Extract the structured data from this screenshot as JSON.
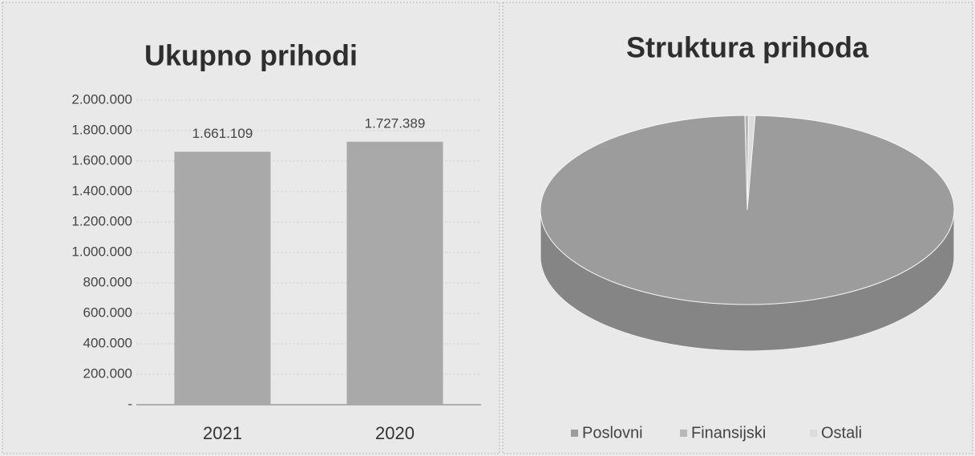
{
  "chart_data": [
    {
      "type": "bar",
      "title": "Ukupno prihodi",
      "categories": [
        "2021",
        "2020"
      ],
      "values": [
        1661109,
        1727389
      ],
      "value_labels": [
        "1.661.109",
        "1.727.389"
      ],
      "color": "#a9a9a9",
      "ylim": [
        0,
        2000000
      ],
      "yticks": [
        {
          "value": 0,
          "label": "-"
        },
        {
          "value": 200000,
          "label": "200.000"
        },
        {
          "value": 400000,
          "label": "400.000"
        },
        {
          "value": 600000,
          "label": "600.000"
        },
        {
          "value": 800000,
          "label": "800.000"
        },
        {
          "value": 1000000,
          "label": "1.000.000"
        },
        {
          "value": 1200000,
          "label": "1.200.000"
        },
        {
          "value": 1400000,
          "label": "1.400.000"
        },
        {
          "value": 1600000,
          "label": "1.600.000"
        },
        {
          "value": 1800000,
          "label": "1.800.000"
        },
        {
          "value": 2000000,
          "label": "2.000.000"
        }
      ],
      "grid": true
    },
    {
      "type": "pie",
      "title": "Struktura prihoda",
      "categories": [
        "Poslovni",
        "Finansijski",
        "Ostali"
      ],
      "values": [
        99.2,
        0.3,
        0.5
      ],
      "colors": [
        "#9c9c9c",
        "#b8b8b8",
        "#dcdcdc"
      ],
      "legend": "bottom"
    }
  ]
}
